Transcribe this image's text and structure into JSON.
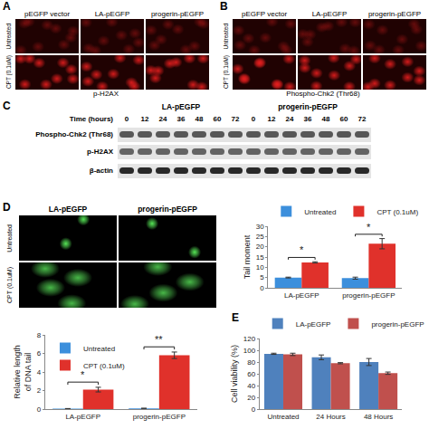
{
  "panels": {
    "A": {
      "label": "A",
      "columns": [
        "pEGFP vector",
        "LA-pEGFP",
        "progerin-pEGFP"
      ],
      "rows": [
        "Untreated",
        "CPT (0.1uM)"
      ],
      "caption": "p-H2AX"
    },
    "B": {
      "label": "B",
      "columns": [
        "pEGFP vector",
        "LA-pEGFP",
        "progerin-pEGFP"
      ],
      "rows": [
        "Untreated",
        "CPT (0.1uM)"
      ],
      "caption": "Phospho-Chk2 (Thr68)"
    },
    "C": {
      "label": "C",
      "groups": [
        "LA-pEGFP",
        "progerin-pEGFP"
      ],
      "time_label": "Time (hours)",
      "times": [
        0,
        12,
        24,
        36,
        48,
        60,
        72
      ],
      "rows": [
        "Phospho-Chk2 (Thr68)",
        "p-H2AX",
        "β-actin"
      ]
    },
    "D": {
      "label": "D",
      "columns": [
        "LA-pEGFP",
        "progerin-pEGFP"
      ],
      "rows": [
        "Untreated",
        "CPT (0.1uM)"
      ]
    },
    "E": {
      "label": "E"
    }
  },
  "chart_data": [
    {
      "type": "bar",
      "y_label": "Tail moment",
      "categories": [
        "LA-pEGFP",
        "progerin-pEGFP"
      ],
      "series": [
        {
          "name": "Untreated",
          "color": "#3c8fdc",
          "values": [
            5.0,
            4.7
          ],
          "errors": [
            0.2,
            0.5
          ]
        },
        {
          "name": "CPT (0.1uM)",
          "color": "#e0312b",
          "values": [
            12.4,
            21.5
          ],
          "errors": [
            0.3,
            2.5
          ]
        }
      ],
      "ylim": [
        0,
        30
      ],
      "yticks": [
        0,
        5,
        10,
        15,
        20,
        25,
        30
      ],
      "grid": false,
      "legend": "top",
      "annotations": [
        {
          "category": 0,
          "text": "*"
        },
        {
          "category": 1,
          "text": "*"
        }
      ]
    },
    {
      "type": "bar",
      "y_label": "Relative length of DNA tail",
      "categories": [
        "LA-pEGFP",
        "progerin-pEGFP"
      ],
      "series": [
        {
          "name": "Untreated",
          "color": "#3c8fdc",
          "values": [
            0.05,
            0.08
          ],
          "errors": [
            0.01,
            0.01
          ]
        },
        {
          "name": "CPT (0.1uM)",
          "color": "#e0312b",
          "values": [
            2.1,
            5.8
          ],
          "errors": [
            0.25,
            0.35
          ]
        }
      ],
      "ylim": [
        0,
        8
      ],
      "yticks": [
        0,
        2,
        4,
        6,
        8
      ],
      "grid": false,
      "legend": "top-left",
      "annotations": [
        {
          "category": 0,
          "text": "*"
        },
        {
          "category": 1,
          "text": "**"
        }
      ]
    },
    {
      "type": "bar",
      "y_label": "Cell viability (%)",
      "categories": [
        "Untreated",
        "24 Hours",
        "48 Hours"
      ],
      "series": [
        {
          "name": "LA-pEGFP",
          "color": "#4f81bd",
          "values": [
            94,
            88,
            80
          ],
          "errors": [
            1,
            4,
            6
          ]
        },
        {
          "name": "progerin-pEGFP",
          "color": "#c0504d",
          "values": [
            93,
            78,
            61
          ],
          "errors": [
            2,
            1,
            2
          ]
        }
      ],
      "ylim": [
        0,
        120
      ],
      "yticks": [
        0,
        20,
        40,
        60,
        80,
        100,
        120
      ],
      "grid": false,
      "legend": "top"
    }
  ]
}
